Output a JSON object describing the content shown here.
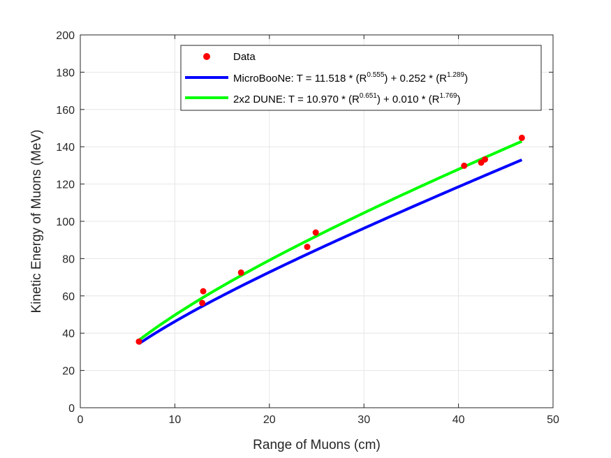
{
  "chart_data": {
    "type": "scatter",
    "title": "",
    "xlabel": "Range of Muons (cm)",
    "ylabel": "Kinetic Energy of Muons (MeV)",
    "xlim": [
      0,
      50
    ],
    "ylim": [
      0,
      200
    ],
    "x_ticks": [
      0,
      10,
      20,
      30,
      40,
      50
    ],
    "y_ticks": [
      0,
      20,
      40,
      60,
      80,
      100,
      120,
      140,
      160,
      180,
      200
    ],
    "grid": true,
    "legend_position": "top-center",
    "series": [
      {
        "name": "Data",
        "kind": "points",
        "color": "#ff0000",
        "points": [
          [
            6.2,
            35.5
          ],
          [
            12.9,
            56.2
          ],
          [
            13.0,
            62.5
          ],
          [
            17.0,
            72.5
          ],
          [
            24.0,
            86.3
          ],
          [
            24.9,
            94.0
          ],
          [
            40.6,
            129.8
          ],
          [
            42.4,
            131.5
          ],
          [
            42.8,
            133.2
          ],
          [
            46.7,
            144.8
          ]
        ]
      },
      {
        "name": "MicroBooNe",
        "kind": "fit",
        "color": "#0000ff",
        "equation": {
          "prefix": "MicroBooNe: T = 11.518 * (R",
          "exp1": "0.555",
          "mid": ") + 0.252 * (R",
          "exp2": "1.289",
          "suffix": ")"
        },
        "a": 11.518,
        "p": 0.555,
        "b": 0.252,
        "q": 1.289,
        "x_range": [
          6.2,
          46.7
        ]
      },
      {
        "name": "2x2 DUNE",
        "kind": "fit",
        "color": "#00ff00",
        "equation": {
          "prefix": "2x2 DUNE: T = 10.970 * (R",
          "exp1": "0.651",
          "mid": ") + 0.010 * (R",
          "exp2": "1.769",
          "suffix": ")"
        },
        "a": 10.97,
        "p": 0.651,
        "b": 0.01,
        "q": 1.769,
        "x_range": [
          6.2,
          46.7
        ]
      }
    ],
    "legend": {
      "data_label": "Data"
    }
  }
}
